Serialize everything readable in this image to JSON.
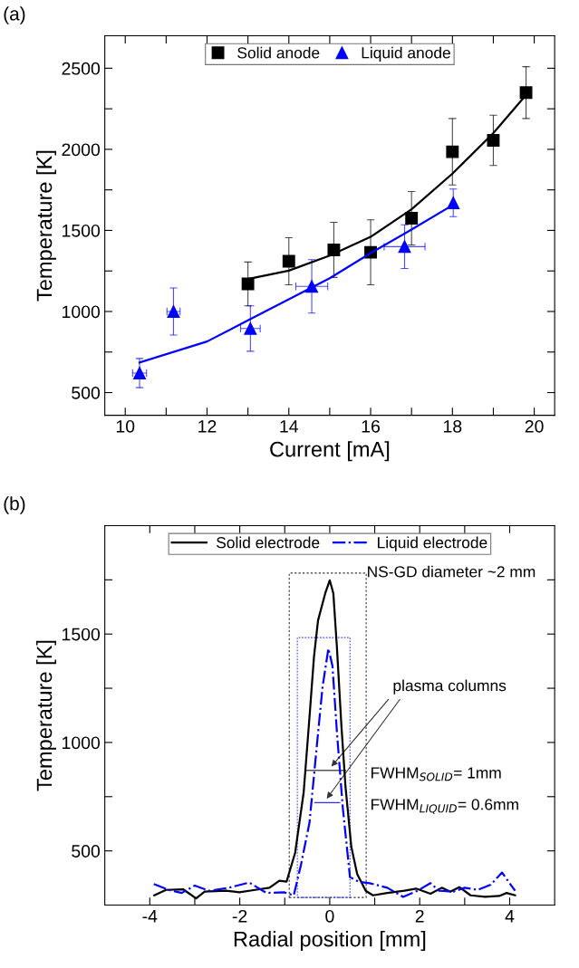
{
  "chart_data": [
    {
      "type": "scatter",
      "title": "(a)",
      "xlabel": "Current [mA]",
      "ylabel": "Temperature [K]",
      "xlim": [
        9.5,
        20.5
      ],
      "xticks": [
        10,
        {
          "value": 11,
          "label": null
        },
        12,
        {
          "value": 13,
          "label": null
        },
        14,
        {
          "value": 15,
          "label": null
        },
        16,
        {
          "value": 17,
          "label": null
        },
        18,
        {
          "value": 19,
          "label": null
        },
        20
      ],
      "ylim": [
        360,
        2700
      ],
      "yticks": [
        500,
        {
          "value": 750,
          "label": null
        },
        1000,
        {
          "value": 1250,
          "label": null
        },
        1500,
        {
          "value": 1750,
          "label": null
        },
        2000,
        {
          "value": 2250,
          "label": null
        },
        2500
      ],
      "legend": "top",
      "grid": false,
      "series": [
        {
          "name": "Solid anode",
          "type": "scatter",
          "marker": "square",
          "color": "#000000",
          "x": [
            13.0,
            14.0,
            15.1,
            16.0,
            17.0,
            18.0,
            19.0,
            19.8
          ],
          "values": [
            1170,
            1310,
            1380,
            1365,
            1575,
            1985,
            2055,
            2350
          ],
          "errors": [
            135,
            145,
            170,
            200,
            165,
            205,
            155,
            160
          ]
        },
        {
          "name": "Liquid anode",
          "type": "scatter",
          "marker": "triangle",
          "color": "#0000ff",
          "x": [
            10.35,
            11.18,
            13.06,
            14.56,
            16.83,
            18.02
          ],
          "values": [
            620,
            1000,
            895,
            1155,
            1400,
            1670
          ],
          "errors": [
            90,
            145,
            140,
            165,
            135,
            85
          ],
          "xerrors": [
            0.17,
            0.16,
            0.24,
            0.39,
            0.5,
            null
          ]
        },
        {
          "type": "line",
          "marker": "none",
          "color": "#000000",
          "x": [
            13,
            14,
            15,
            16,
            17,
            18,
            19,
            19.8
          ],
          "values": [
            1200,
            1252,
            1345,
            1460,
            1630,
            1850,
            2100,
            2335
          ]
        },
        {
          "type": "line",
          "marker": "none",
          "color": "#0000ff",
          "x": [
            10.35,
            12,
            13,
            14,
            15,
            16,
            17,
            18
          ],
          "values": [
            685,
            815,
            945,
            1075,
            1205,
            1360,
            1505,
            1655
          ]
        }
      ]
    },
    {
      "type": "line",
      "title": "(b)",
      "xlabel": "Radial position [mm]",
      "ylabel": "Temperature [K]",
      "xlim": [
        -5,
        5
      ],
      "xticks": [
        -4,
        {
          "value": -3,
          "label": null
        },
        -2,
        {
          "value": -1,
          "label": null
        },
        0,
        {
          "value": 1,
          "label": null
        },
        2,
        {
          "value": 3,
          "label": null
        },
        4
      ],
      "ylim": [
        250,
        2000
      ],
      "yticks": [
        500,
        {
          "value": 750,
          "label": null
        },
        1000,
        {
          "value": 1250,
          "label": null
        },
        1500,
        {
          "value": 1750,
          "label": null
        }
      ],
      "legend": "top",
      "grid": false,
      "marker": "none",
      "annotations": [
        "NS-GD diameter ~2 mm",
        "plasma columns",
        "FWHM$_{SOLID}$= 1mm",
        "FWHM$_{LIQUID}$= 0.6mm"
      ],
      "series": [
        {
          "name": "Solid electrode",
          "color": "#000000",
          "line_style": "solid",
          "x": [
            -3.9,
            -3.64,
            -3.26,
            -2.97,
            -2.78,
            -2.3,
            -2.01,
            -1.66,
            -1.34,
            -1.12,
            -0.96,
            -0.77,
            -0.58,
            -0.45,
            -0.35,
            -0.26,
            -0.1,
            0,
            0.08,
            0.16,
            0.26,
            0.35,
            0.48,
            0.61,
            0.8,
            0.96,
            1.28,
            1.66,
            1.92,
            2.24,
            2.49,
            2.68,
            2.88,
            3.13,
            3.45,
            3.77,
            3.93,
            4.12
          ],
          "values": [
            295,
            320,
            323,
            281,
            312,
            316,
            309,
            320,
            330,
            362,
            358,
            490,
            769,
            1117,
            1396,
            1563,
            1688,
            1748,
            1688,
            1437,
            1075,
            797,
            518,
            393,
            316,
            295,
            306,
            316,
            326,
            302,
            330,
            312,
            333,
            295,
            288,
            292,
            306,
            295
          ]
        },
        {
          "name": "Liquid electrode",
          "color": "#0000ff",
          "line_style": "dashdot",
          "x": [
            -3.91,
            -3.58,
            -3.29,
            -3.0,
            -2.68,
            -2.24,
            -1.79,
            -1.41,
            -1.02,
            -0.8,
            -0.64,
            -0.45,
            -0.29,
            -0.16,
            -0.03,
            0.06,
            0.16,
            0.29,
            0.45,
            0.64,
            0.89,
            1.28,
            1.63,
            1.95,
            2.24,
            2.43,
            2.75,
            3.0,
            3.29,
            3.58,
            3.83,
            4.12
          ],
          "values": [
            347,
            320,
            306,
            340,
            316,
            330,
            354,
            306,
            309,
            295,
            435,
            630,
            978,
            1256,
            1433,
            1354,
            1047,
            699,
            379,
            358,
            351,
            330,
            288,
            316,
            351,
            316,
            312,
            330,
            320,
            344,
            400,
            316
          ]
        }
      ]
    }
  ]
}
